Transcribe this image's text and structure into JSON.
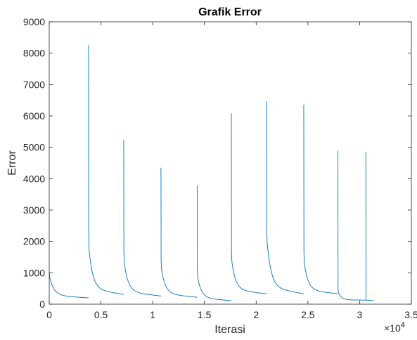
{
  "chart_data": {
    "type": "line",
    "title": "Grafik Error",
    "xlabel": "Iterasi",
    "ylabel": "Error",
    "xlim": [
      0,
      35000
    ],
    "ylim": [
      0,
      9000
    ],
    "x_ticks": [
      0,
      5000,
      10000,
      15000,
      20000,
      25000,
      30000,
      35000
    ],
    "x_tick_labels": [
      "0",
      "0.5",
      "1",
      "1.5",
      "2",
      "2.5",
      "3",
      "3.5"
    ],
    "x_exponent_label": "×10",
    "x_exponent_power": "4",
    "y_ticks": [
      0,
      1000,
      2000,
      3000,
      4000,
      5000,
      6000,
      7000,
      8000,
      9000
    ],
    "y_tick_labels": [
      "0",
      "1000",
      "2000",
      "3000",
      "4000",
      "5000",
      "6000",
      "7000",
      "8000",
      "9000"
    ],
    "grid": false,
    "line_color": "#0072BD",
    "series": [
      {
        "segments": [
          {
            "start": 0,
            "end": 3800,
            "peak": 1050,
            "secondary": 1050,
            "tail": 200
          },
          {
            "start": 3800,
            "end": 7200,
            "peak": 8250,
            "secondary": 2200,
            "tail": 310
          },
          {
            "start": 7200,
            "end": 10800,
            "peak": 5230,
            "secondary": 1650,
            "tail": 260
          },
          {
            "start": 10800,
            "end": 14300,
            "peak": 4350,
            "secondary": 1400,
            "tail": 220
          },
          {
            "start": 14300,
            "end": 17600,
            "peak": 3780,
            "secondary": 1100,
            "tail": 110
          },
          {
            "start": 17600,
            "end": 21000,
            "peak": 6080,
            "secondary": 1700,
            "tail": 330
          },
          {
            "start": 21000,
            "end": 24600,
            "peak": 6470,
            "secondary": 2550,
            "tail": 330
          },
          {
            "start": 24600,
            "end": 27900,
            "peak": 6360,
            "secondary": 1650,
            "tail": 330
          },
          {
            "start": 27900,
            "end": 30600,
            "peak": 4890,
            "secondary": 500,
            "tail": 130
          },
          {
            "start": 30600,
            "end": 31300,
            "peak": 4850,
            "secondary": 140,
            "tail": 120
          }
        ]
      }
    ]
  }
}
